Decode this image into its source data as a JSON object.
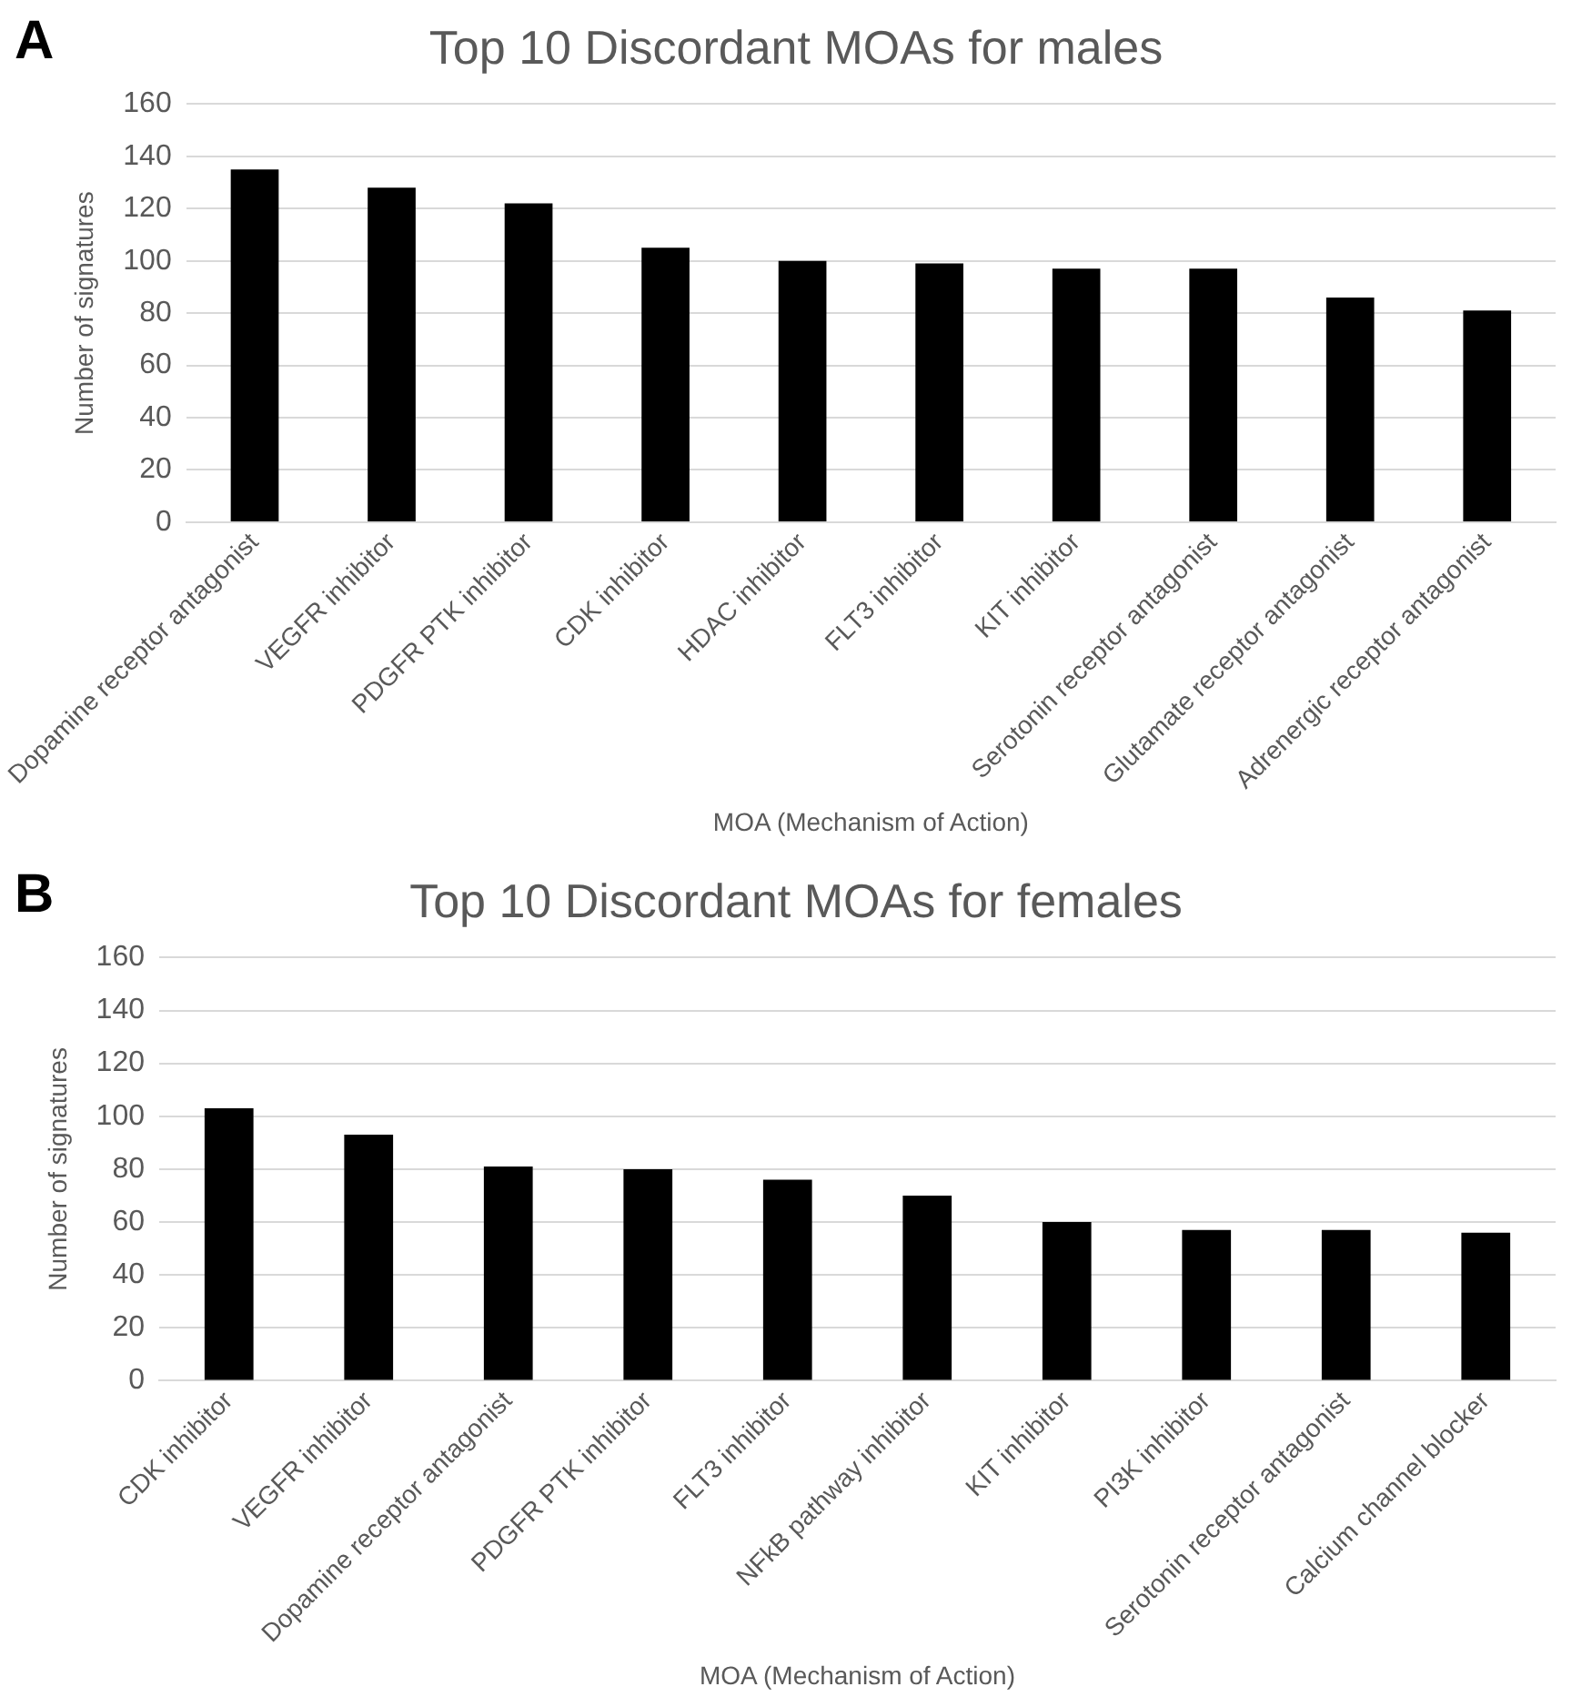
{
  "chart_data": [
    {
      "type": "bar",
      "title": "Top 10 Discordant MOAs for males",
      "annotations": [
        "A"
      ],
      "xlabel": "MOA (Mechanism of Action)",
      "ylabel": "Number of signatures",
      "categories": [
        "Dopamine receptor antagonist",
        "VEGFR inhibitor",
        "PDGFR PTK inhibitor",
        "CDK inhibitor",
        "HDAC inhibitor",
        "FLT3 inhibitor",
        "KIT inhibitor",
        "Serotonin receptor antagonist",
        "Glutamate receptor antagonist",
        "Adrenergic receptor antagonist"
      ],
      "values": [
        135,
        128,
        122,
        105,
        100,
        99,
        97,
        97,
        86,
        81
      ],
      "color": "#000000",
      "ylim": [
        0,
        160
      ],
      "yticks": [
        0,
        20,
        40,
        60,
        80,
        100,
        120,
        140,
        160
      ],
      "grid": "y",
      "legend": false
    },
    {
      "type": "bar",
      "title": "Top 10 Discordant MOAs for females",
      "annotations": [
        "B"
      ],
      "xlabel": "MOA (Mechanism of Action)",
      "ylabel": "Number of signatures",
      "categories": [
        "CDK inhibitor",
        "VEGFR inhibitor",
        "Dopamine receptor antagonist",
        "PDGFR PTK inhibitor",
        "FLT3 inhibitor",
        "NFkB pathway inhibitor",
        "KIT inhibitor",
        "PI3K inhibitor",
        "Serotonin receptor antagonist",
        "Calcium channel blocker"
      ],
      "values": [
        103,
        93,
        81,
        80,
        76,
        70,
        60,
        57,
        57,
        56
      ],
      "color": "#000000",
      "ylim": [
        0,
        160
      ],
      "yticks": [
        0,
        20,
        40,
        60,
        80,
        100,
        120,
        140,
        160
      ],
      "grid": "y",
      "legend": false
    }
  ]
}
